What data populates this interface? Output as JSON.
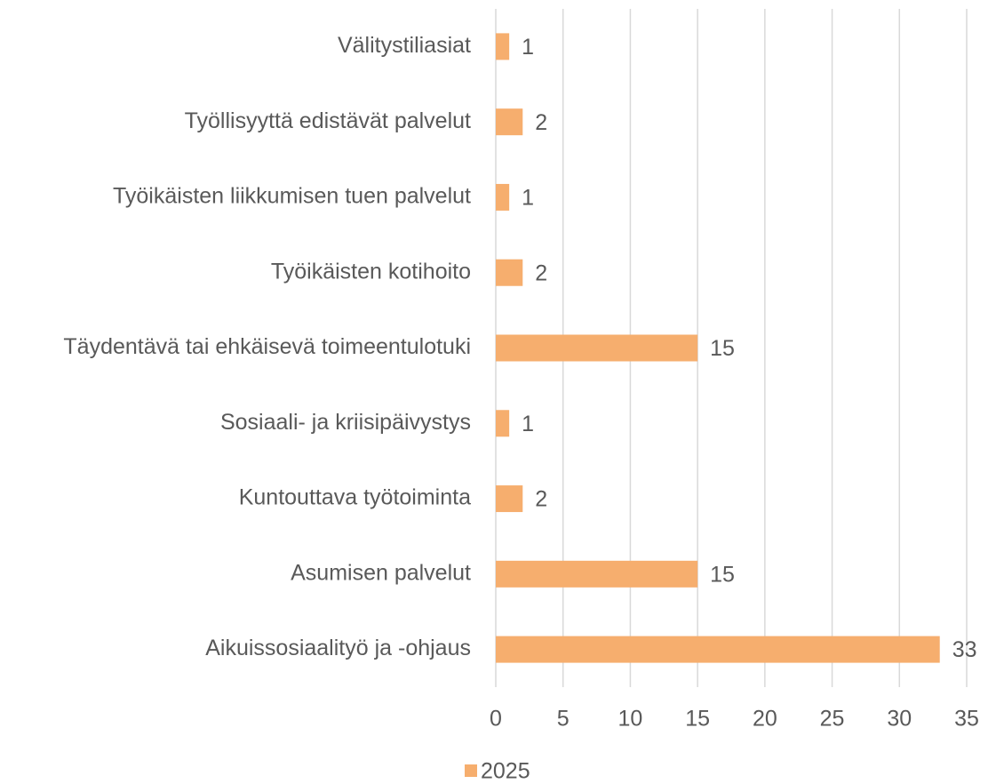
{
  "chart_data": {
    "type": "bar",
    "orientation": "horizontal",
    "categories": [
      "Välitystiliasiat",
      "Työllisyyttä edistävät palvelut",
      "Työikäisten liikkumisen tuen palvelut",
      "Työikäisten kotihoito",
      "Täydentävä tai ehkäisevä toimeentulotuki",
      "Sosiaali- ja kriisipäivystys",
      "Kuntouttava työtoiminta",
      "Asumisen palvelut",
      "Aikuissosiaalityö ja -ohjaus"
    ],
    "series": [
      {
        "name": "2025",
        "color": "#f6ae6e",
        "values": [
          1,
          2,
          1,
          2,
          15,
          1,
          2,
          15,
          33
        ]
      }
    ],
    "xlim": [
      0,
      35
    ],
    "xticks": [
      0,
      5,
      10,
      15,
      20,
      25,
      30,
      35
    ],
    "grid": true,
    "legend": "bottom"
  }
}
